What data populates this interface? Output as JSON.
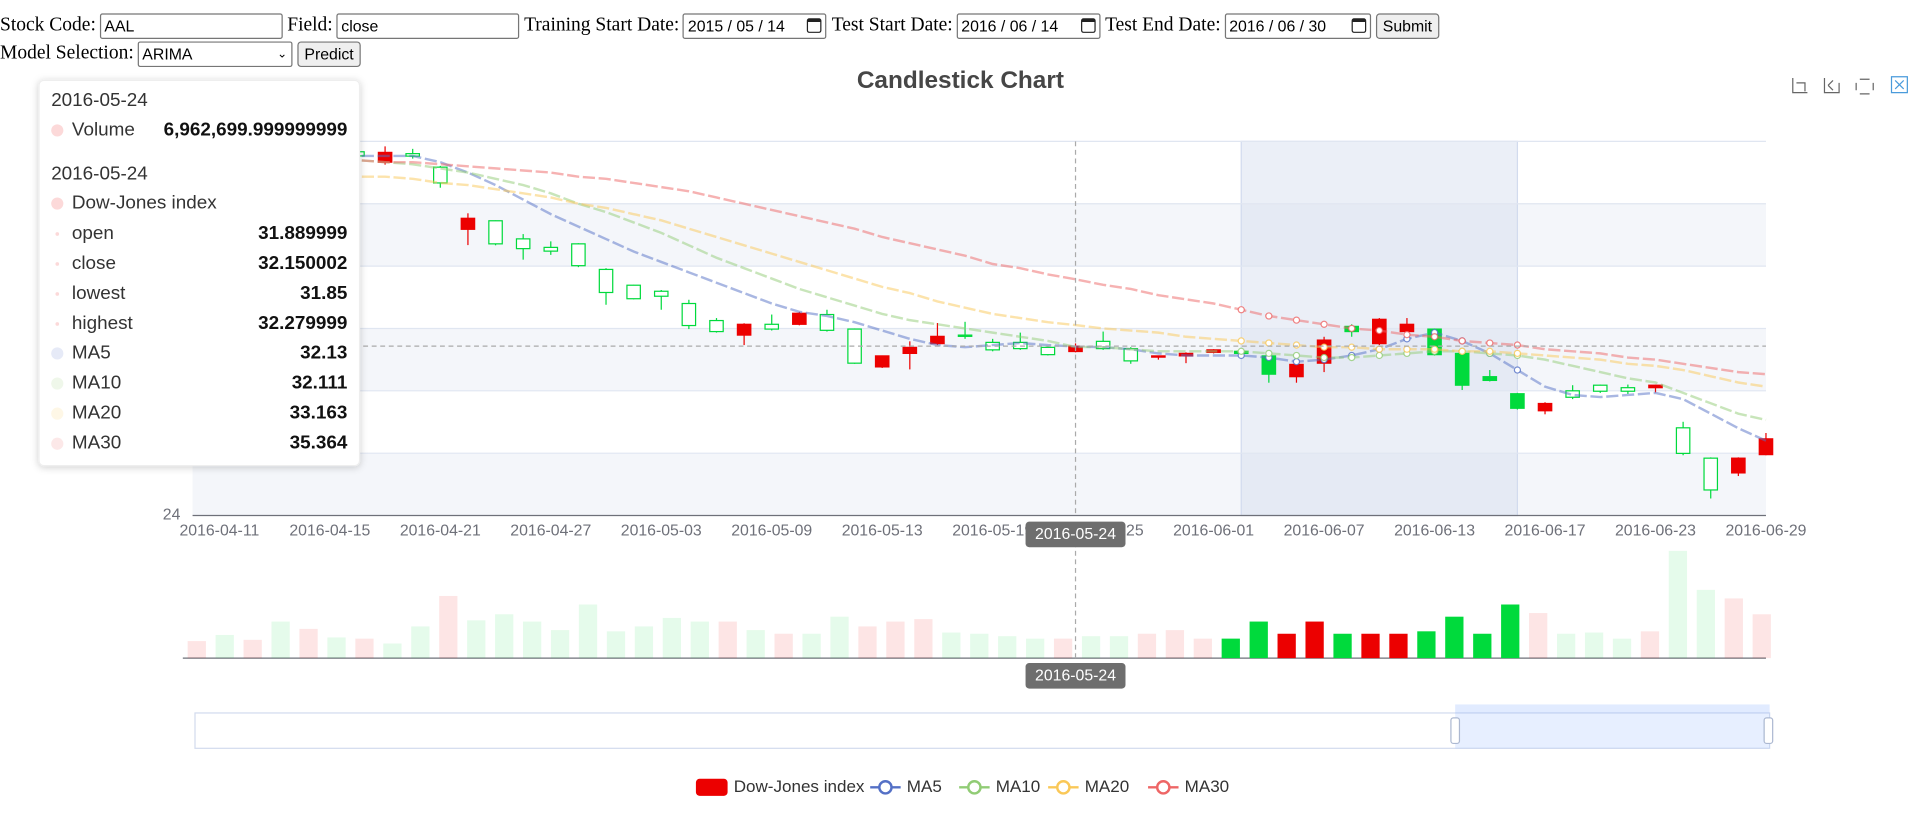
{
  "form": {
    "stock_code_label": "Stock Code:",
    "stock_code": "AAL",
    "field_label": "Field:",
    "field": "close",
    "training_start_label": "Training Start Date:",
    "training_start": "2015 / 05 / 14",
    "test_start_label": "Test Start Date:",
    "test_start": "2016 / 06 / 14",
    "test_end_label": "Test End Date:",
    "test_end": "2016 / 06 / 30",
    "submit": "Submit",
    "model_label": "Model Selection:",
    "model": "ARIMA",
    "predict": "Predict"
  },
  "chart_data": {
    "type": "candlestick",
    "title": "Candlestick Chart",
    "categories": [
      "2016-04-11",
      null,
      null,
      null,
      "2016-04-15",
      null,
      null,
      null,
      "2016-04-21",
      null,
      null,
      null,
      "2016-04-27",
      null,
      null,
      null,
      "2016-05-03",
      null,
      null,
      null,
      "2016-05-09",
      null,
      null,
      null,
      "2016-05-13",
      null,
      null,
      null,
      "2016-05-19",
      null,
      null,
      null,
      "2016-05-25",
      null,
      null,
      null,
      "2016-06-01",
      null,
      null,
      null,
      "2016-06-07",
      null,
      null,
      null,
      "2016-06-13",
      null,
      null,
      null,
      "2016-06-17",
      null,
      null,
      null,
      "2016-06-23",
      null,
      null,
      null,
      "2016-06-29"
    ],
    "candles": {
      "name": "Dow-Jones index",
      "up_color": "#ec0000",
      "down_color": "#00da3c",
      "values": [
        [
          40.8,
          41.2,
          40.6,
          41.4
        ],
        [
          41.2,
          40.9,
          40.7,
          41.5
        ],
        [
          40.9,
          41.6,
          40.8,
          41.7
        ],
        [
          41.6,
          41.3,
          41.1,
          41.8
        ],
        [
          41.3,
          41.7,
          41.2,
          41.9
        ],
        [
          41.5,
          41.3,
          41.1,
          41.6
        ],
        [
          41.0,
          41.47,
          40.88,
          41.76
        ],
        [
          41.41,
          41.29,
          41.17,
          41.64
        ],
        [
          40.76,
          40.0,
          39.77,
          40.82
        ],
        [
          37.77,
          38.3,
          37.01,
          38.54
        ],
        [
          38.18,
          37.07,
          37.0,
          38.2
        ],
        [
          37.31,
          36.84,
          36.31,
          37.54
        ],
        [
          36.9,
          36.72,
          36.54,
          37.19
        ],
        [
          37.07,
          36.02,
          35.95,
          37.1
        ],
        [
          35.84,
          34.73,
          34.14,
          35.9
        ],
        [
          35.08,
          34.43,
          34.4,
          35.1
        ],
        [
          34.79,
          34.55,
          33.9,
          34.85
        ],
        [
          34.2,
          33.14,
          32.97,
          34.38
        ],
        [
          33.38,
          32.85,
          32.8,
          33.5
        ],
        [
          32.68,
          33.2,
          32.2,
          33.25
        ],
        [
          33.2,
          32.97,
          32.9,
          33.67
        ],
        [
          33.2,
          33.73,
          33.15,
          33.8
        ],
        [
          33.67,
          32.91,
          32.85,
          33.9
        ],
        [
          32.97,
          31.33,
          31.3,
          33.0
        ],
        [
          31.15,
          31.68,
          31.1,
          31.7
        ],
        [
          31.8,
          32.09,
          31.03,
          32.38
        ],
        [
          32.27,
          32.62,
          32.2,
          33.26
        ],
        [
          32.68,
          32.62,
          32.5,
          33.32
        ],
        [
          32.33,
          31.97,
          31.9,
          32.5
        ],
        [
          32.33,
          32.03,
          31.97,
          32.8
        ],
        [
          32.09,
          31.74,
          31.7,
          32.15
        ],
        [
          31.889999,
          32.150002,
          31.85,
          32.279999
        ],
        [
          32.38,
          32.03,
          31.97,
          32.85
        ],
        [
          32.03,
          31.44,
          31.3,
          32.1
        ],
        [
          31.62,
          31.68,
          31.5,
          31.7
        ],
        [
          31.68,
          31.8,
          31.33,
          31.85
        ],
        [
          31.85,
          31.97,
          31.8,
          32.0
        ],
        [
          31.9,
          31.8,
          31.75,
          31.95
        ],
        [
          31.68,
          30.8,
          30.39,
          31.75
        ],
        [
          30.68,
          31.27,
          30.39,
          31.3
        ],
        [
          31.33,
          32.44,
          30.9,
          32.6
        ],
        [
          33.1,
          32.85,
          32.6,
          33.2
        ],
        [
          32.27,
          33.44,
          32.2,
          33.5
        ],
        [
          32.85,
          33.2,
          32.8,
          33.5
        ],
        [
          32.97,
          31.74,
          31.7,
          33.0
        ],
        [
          31.8,
          30.27,
          30.04,
          31.85
        ],
        [
          30.68,
          30.5,
          30.45,
          31.0
        ],
        [
          29.86,
          29.16,
          29.1,
          29.9
        ],
        [
          29.04,
          29.39,
          28.87,
          29.45
        ],
        [
          30.0,
          29.69,
          29.6,
          30.27
        ],
        [
          30.27,
          29.98,
          29.9,
          30.3
        ],
        [
          30.15,
          29.98,
          29.85,
          30.3
        ],
        [
          30.15,
          30.27,
          29.92,
          30.3
        ],
        [
          28.22,
          26.99,
          26.9,
          28.51
        ],
        [
          26.76,
          25.23,
          24.82,
          26.8
        ],
        [
          26.05,
          26.76,
          25.9,
          26.8
        ],
        [
          26.93,
          27.69,
          26.9,
          27.97
        ]
      ]
    },
    "series": [
      {
        "name": "MA5",
        "color": "#5470c6",
        "values": [
          41.2,
          41.3,
          41.3,
          41.4,
          41.3,
          41.3,
          41.3,
          41.3,
          41.0,
          40.5,
          39.9,
          39.2,
          38.5,
          37.9,
          37.3,
          36.7,
          36.2,
          35.7,
          35.2,
          34.7,
          34.2,
          33.8,
          33.6,
          33.3,
          32.9,
          32.5,
          32.2,
          32.1,
          32.2,
          32.3,
          32.2,
          32.13,
          32.1,
          32.0,
          31.8,
          31.7,
          31.7,
          31.7,
          31.6,
          31.4,
          31.5,
          31.7,
          32.0,
          32.5,
          32.8,
          32.4,
          31.8,
          31.0,
          30.2,
          29.8,
          29.7,
          29.8,
          29.9,
          29.6,
          28.9,
          28.2,
          27.6
        ]
      },
      {
        "name": "MA10",
        "color": "#91cc75",
        "values": [
          41.0,
          41.1,
          41.1,
          41.2,
          41.2,
          41.1,
          41.0,
          40.9,
          40.7,
          40.5,
          40.2,
          39.9,
          39.5,
          39.0,
          38.6,
          38.1,
          37.6,
          37.0,
          36.4,
          35.9,
          35.4,
          34.9,
          34.5,
          34.1,
          33.7,
          33.4,
          33.2,
          33.0,
          32.8,
          32.6,
          32.4,
          32.111,
          32.1,
          32.0,
          31.9,
          31.9,
          31.9,
          31.9,
          31.8,
          31.7,
          31.6,
          31.6,
          31.7,
          31.8,
          31.9,
          31.9,
          31.8,
          31.7,
          31.5,
          31.2,
          30.9,
          30.6,
          30.4,
          29.9,
          29.4,
          28.9,
          28.6
        ]
      },
      {
        "name": "MA20",
        "color": "#fac858",
        "values": [
          40.5,
          40.5,
          40.5,
          40.4,
          40.4,
          40.3,
          40.3,
          40.2,
          40.0,
          39.9,
          39.7,
          39.5,
          39.3,
          39.0,
          38.8,
          38.5,
          38.2,
          37.8,
          37.4,
          37.0,
          36.6,
          36.2,
          35.8,
          35.4,
          35.0,
          34.7,
          34.3,
          34.0,
          33.7,
          33.5,
          33.3,
          33.163,
          33.0,
          32.9,
          32.8,
          32.6,
          32.5,
          32.4,
          32.3,
          32.2,
          32.1,
          32.1,
          32.0,
          32.0,
          32.0,
          31.9,
          31.9,
          31.8,
          31.7,
          31.6,
          31.5,
          31.3,
          31.2,
          31.0,
          30.7,
          30.4,
          30.2
        ]
      },
      {
        "name": "MA30",
        "color": "#ee6666",
        "values": [
          41.3,
          41.3,
          41.2,
          41.2,
          41.1,
          41.1,
          41.0,
          41.0,
          40.9,
          40.8,
          40.7,
          40.6,
          40.5,
          40.3,
          40.2,
          40.0,
          39.8,
          39.6,
          39.3,
          39.0,
          38.7,
          38.4,
          38.1,
          37.8,
          37.4,
          37.1,
          36.8,
          36.5,
          36.1,
          35.9,
          35.6,
          35.364,
          35.1,
          34.9,
          34.6,
          34.4,
          34.2,
          33.9,
          33.6,
          33.4,
          33.2,
          33.0,
          32.9,
          32.7,
          32.6,
          32.4,
          32.3,
          32.2,
          32.0,
          31.9,
          31.8,
          31.6,
          31.5,
          31.3,
          31.1,
          30.9,
          30.8
        ]
      }
    ],
    "volume": {
      "name": "Volume",
      "values": [
        6090000,
        8265000,
        6525000,
        13050000,
        10440000,
        7395000,
        6960000,
        5220000,
        11310000,
        22185000,
        13485000,
        15660000,
        13050000,
        10005000,
        19140000,
        9570000,
        11310000,
        14355000,
        13050000,
        13050000,
        10005000,
        8700000,
        8700000,
        14790000,
        11310000,
        13050000,
        13920000,
        9135000,
        8700000,
        7830000,
        6960000,
        6962699.999999999,
        7830000,
        7830000,
        8700000,
        10005000,
        6960000,
        6960000,
        13050000,
        8700000,
        13050000,
        8700000,
        8700000,
        8700000,
        9570000,
        14790000,
        8700000,
        19140000,
        16095000,
        8700000,
        9135000,
        6960000,
        9570000,
        38280000,
        24360000,
        21315000,
        15660000
      ]
    },
    "ylim": [
      24,
      42
    ],
    "yticks": [
      24,
      27,
      30,
      33,
      36,
      39,
      42
    ],
    "grid": true,
    "brush": [
      37,
      47
    ],
    "pointer_index": 31,
    "axis_pointer_labels": [
      "2016-05-24",
      "2016-05-24"
    ],
    "tooltip": {
      "dates": [
        "2016-05-24",
        "2016-05-24"
      ],
      "volume_label": "6,962,699.999999999",
      "ohlc_names": [
        "open",
        "close",
        "lowest",
        "highest"
      ],
      "ohlc_labels": [
        "31.889999",
        "32.150002",
        "31.85",
        "32.279999"
      ],
      "ma_labels": [
        "32.13",
        "32.111",
        "33.163",
        "35.364"
      ]
    }
  }
}
